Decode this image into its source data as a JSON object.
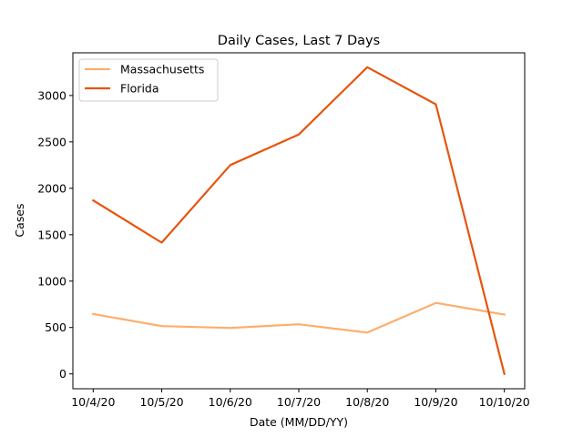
{
  "chart_data": {
    "type": "line",
    "title": "Daily Cases, Last 7 Days",
    "xlabel": "Date (MM/DD/YY)",
    "ylabel": "Cases",
    "categories": [
      "10/4/20",
      "10/5/20",
      "10/6/20",
      "10/7/20",
      "10/8/20",
      "10/9/20",
      "10/10/20"
    ],
    "ylim": [
      -160,
      3460
    ],
    "yticks": [
      0,
      500,
      1000,
      1500,
      2000,
      2500,
      3000
    ],
    "grid": false,
    "legend_position": "top-left",
    "series": [
      {
        "name": "Massachusetts",
        "color": "#fdae6b",
        "values": [
          645,
          515,
          495,
          535,
          445,
          765,
          640
        ]
      },
      {
        "name": "Florida",
        "color": "#e6550d",
        "values": [
          1870,
          1415,
          2250,
          2580,
          3305,
          2905,
          0
        ]
      }
    ]
  }
}
